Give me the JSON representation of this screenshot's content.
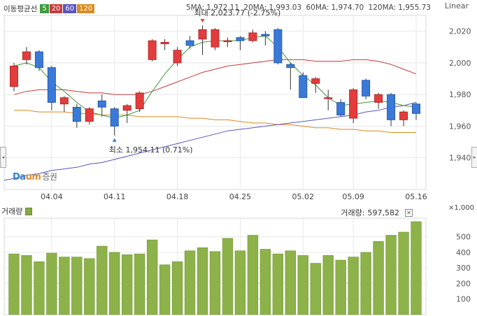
{
  "legend": {
    "title": "이동평균선",
    "items": [
      {
        "label": "5",
        "color": "#3f9b3a"
      },
      {
        "label": "20",
        "color": "#c23b3b"
      },
      {
        "label": "60",
        "color": "#5856b8"
      },
      {
        "label": "120",
        "color": "#d98a22"
      }
    ]
  },
  "ma_readout": {
    "ma5_label": "5MA:",
    "ma5_value": "1,972.11",
    "ma20_label": "20MA:",
    "ma20_value": "1,993.03",
    "ma60_label": "60MA:",
    "ma60_value": "1,974.70",
    "ma120_label": "120MA:",
    "ma120_value": "1,955.73"
  },
  "scale_mode": "Linear",
  "logo": {
    "part1": "Da",
    "part2": "um",
    "part3": "증권"
  },
  "volume_panel": {
    "title": "거래량",
    "readout_label": "거래량:",
    "readout_value": "597,582",
    "unit": "×1,000"
  },
  "colors": {
    "up": "#e23c3c",
    "down": "#3a79d8",
    "ma5": "#3f9b3a",
    "ma20": "#c23b3b",
    "ma60": "#5856b8",
    "ma120": "#d98a22",
    "volume": "#8db24a",
    "grid": "#e8e8e8"
  },
  "chart_data": [
    {
      "type": "candlestick",
      "x_ticks": [
        "04.04",
        "04.11",
        "04.18",
        "04.25",
        "05.02",
        "05.09",
        "05.16"
      ],
      "y_ticks": [
        1940,
        1960,
        1980,
        2000,
        2020
      ],
      "ylim": [
        1920,
        2030
      ],
      "annotations": {
        "high": {
          "label": "최대",
          "value_text": "2,023.77 (-2.75%)",
          "index": 15,
          "price": 2023.77
        },
        "low": {
          "label": "최소",
          "value_text": "1,954.11 (0.71%)",
          "index": 8,
          "price": 1954.11
        }
      },
      "candles": [
        {
          "o": 1985,
          "c": 1998,
          "h": 2000,
          "l": 1982
        },
        {
          "o": 2002,
          "c": 2007,
          "h": 2010,
          "l": 1999
        },
        {
          "o": 2007,
          "c": 1997,
          "h": 2008,
          "l": 1995
        },
        {
          "o": 1997,
          "c": 1975,
          "h": 1998,
          "l": 1970
        },
        {
          "o": 1974,
          "c": 1978,
          "h": 1979,
          "l": 1969
        },
        {
          "o": 1972,
          "c": 1963,
          "h": 1974,
          "l": 1959
        },
        {
          "o": 1963,
          "c": 1971,
          "h": 1972,
          "l": 1961
        },
        {
          "o": 1976,
          "c": 1972,
          "h": 1980,
          "l": 1966
        },
        {
          "o": 1971,
          "c": 1960,
          "h": 1972,
          "l": 1954.11
        },
        {
          "o": 1970,
          "c": 1973,
          "h": 1974,
          "l": 1962
        },
        {
          "o": 1971,
          "c": 1981,
          "h": 1982,
          "l": 1969
        },
        {
          "o": 2002,
          "c": 2014,
          "h": 2015,
          "l": 2001
        },
        {
          "o": 2012,
          "c": 2013,
          "h": 2015,
          "l": 2008
        },
        {
          "o": 2000,
          "c": 2008,
          "h": 2010,
          "l": 1998
        },
        {
          "o": 2014,
          "c": 2011,
          "h": 2017,
          "l": 2009
        },
        {
          "o": 2015,
          "c": 2021,
          "h": 2023.77,
          "l": 2005
        },
        {
          "o": 2010,
          "c": 2021,
          "h": 2022,
          "l": 2008
        },
        {
          "o": 2014,
          "c": 2014,
          "h": 2016,
          "l": 2010
        },
        {
          "o": 2016,
          "c": 2014,
          "h": 2017,
          "l": 2008
        },
        {
          "o": 2014,
          "c": 2019,
          "h": 2021,
          "l": 2013
        },
        {
          "o": 2018,
          "c": 2017,
          "h": 2020,
          "l": 2011
        },
        {
          "o": 2021,
          "c": 2000,
          "h": 2022,
          "l": 1999
        },
        {
          "o": 1999,
          "c": 1997,
          "h": 2000,
          "l": 1983
        },
        {
          "o": 1992,
          "c": 1978,
          "h": 1994,
          "l": 1978
        },
        {
          "o": 1987,
          "c": 1990,
          "h": 1991,
          "l": 1981
        },
        {
          "o": 1978,
          "c": 1978,
          "h": 1983,
          "l": 1970
        },
        {
          "o": 1975,
          "c": 1967,
          "h": 1977,
          "l": 1966
        },
        {
          "o": 1965,
          "c": 1983,
          "h": 1984,
          "l": 1962
        },
        {
          "o": 1989,
          "c": 1979,
          "h": 1990,
          "l": 1977
        },
        {
          "o": 1975,
          "c": 1980,
          "h": 1981,
          "l": 1971
        },
        {
          "o": 1980,
          "c": 1964,
          "h": 1981,
          "l": 1960
        },
        {
          "o": 1964,
          "c": 1969,
          "h": 1970,
          "l": 1960
        },
        {
          "o": 1974,
          "c": 1968,
          "h": 1975,
          "l": 1964
        }
      ],
      "ma5": [
        1998,
        2000,
        1997,
        1988,
        1982,
        1975,
        1969,
        1967,
        1965,
        1967,
        1970,
        1982,
        1993,
        2002,
        2010,
        2013,
        2014,
        2014,
        2014,
        2016,
        2017,
        2010,
        2000,
        1992,
        1986,
        1978,
        1973,
        1974,
        1975,
        1976,
        1975,
        1973,
        1972
      ],
      "ma20": [
        1980,
        1982,
        1983,
        1983,
        1983,
        1982,
        1981,
        1981,
        1980,
        1980,
        1980,
        1982,
        1985,
        1988,
        1991,
        1994,
        1996,
        1998,
        1999,
        2000,
        2001,
        2002,
        2002,
        2002,
        2001,
        2001,
        2001,
        2002,
        2002,
        2001,
        1999,
        1996,
        1993
      ],
      "ma60": [
        1927,
        1929,
        1930,
        1932,
        1933,
        1934,
        1936,
        1937,
        1939,
        1941,
        1943,
        1945,
        1947,
        1949,
        1951,
        1953,
        1955,
        1957,
        1958,
        1959,
        1960,
        1961,
        1962,
        1963,
        1964,
        1965,
        1966,
        1967,
        1969,
        1970,
        1972,
        1973,
        1975
      ],
      "ma120": [
        1970,
        1970,
        1969,
        1969,
        1969,
        1968,
        1968,
        1967,
        1967,
        1967,
        1966,
        1966,
        1966,
        1966,
        1965,
        1965,
        1964,
        1964,
        1963,
        1962,
        1962,
        1961,
        1961,
        1960,
        1959,
        1959,
        1958,
        1958,
        1957,
        1957,
        1956,
        1956,
        1956
      ]
    },
    {
      "type": "bar",
      "series_name": "거래량",
      "unit": "×1,000",
      "y_ticks": [
        100,
        200,
        300,
        400,
        500
      ],
      "ylim": [
        0,
        620
      ],
      "values": [
        390,
        380,
        340,
        395,
        370,
        370,
        360,
        440,
        400,
        385,
        390,
        480,
        320,
        340,
        410,
        430,
        405,
        490,
        410,
        510,
        420,
        390,
        410,
        380,
        330,
        380,
        350,
        370,
        400,
        470,
        510,
        530,
        597.582
      ]
    }
  ]
}
